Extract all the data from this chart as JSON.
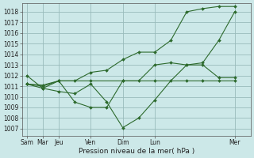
{
  "background_color": "#cce8e8",
  "grid_color": "#99bbbb",
  "line_color": "#2d6a2d",
  "xlabel": "Pression niveau de la mer( hPa )",
  "ylim": [
    1006.3,
    1018.8
  ],
  "yticks": [
    1007,
    1008,
    1009,
    1010,
    1011,
    1012,
    1013,
    1014,
    1015,
    1016,
    1017,
    1018
  ],
  "x_tick_positions": [
    0,
    1,
    2,
    4,
    6,
    8,
    13
  ],
  "x_labels": [
    "Sam",
    "Mar",
    "Jeu",
    "Ven",
    "Dim",
    "Lun",
    "Mer"
  ],
  "xlim": [
    -0.3,
    14.0
  ],
  "lines": [
    {
      "x": [
        0,
        1,
        2,
        4,
        6,
        8,
        10,
        11,
        12,
        13
      ],
      "y": [
        1011.2,
        1011.1,
        1011.5,
        1011.5,
        1011.5,
        1011.5,
        1011.5,
        1011.5,
        1011.5,
        1011.5
      ]
    },
    {
      "x": [
        0,
        1,
        2,
        3,
        4,
        5,
        6,
        7,
        8,
        9,
        10,
        11,
        12,
        13
      ],
      "y": [
        1012.0,
        1010.8,
        1010.5,
        1010.3,
        1011.2,
        1009.5,
        1007.1,
        1008.0,
        1009.7,
        1011.5,
        1013.0,
        1013.0,
        1011.8,
        1011.8
      ]
    },
    {
      "x": [
        0,
        1,
        2,
        3,
        4,
        5,
        6,
        7,
        8,
        9,
        10,
        11,
        12,
        13
      ],
      "y": [
        1011.2,
        1011.0,
        1011.5,
        1011.5,
        1012.3,
        1012.5,
        1013.5,
        1014.2,
        1014.2,
        1015.3,
        1018.0,
        1018.3,
        1018.5,
        1018.5
      ]
    },
    {
      "x": [
        0,
        1,
        2,
        3,
        4,
        5,
        6,
        7,
        8,
        9,
        10,
        11,
        12,
        13
      ],
      "y": [
        1011.2,
        1010.8,
        1011.5,
        1009.5,
        1009.0,
        1009.0,
        1011.5,
        1011.5,
        1013.0,
        1013.2,
        1013.0,
        1013.2,
        1015.3,
        1018.0
      ]
    }
  ]
}
